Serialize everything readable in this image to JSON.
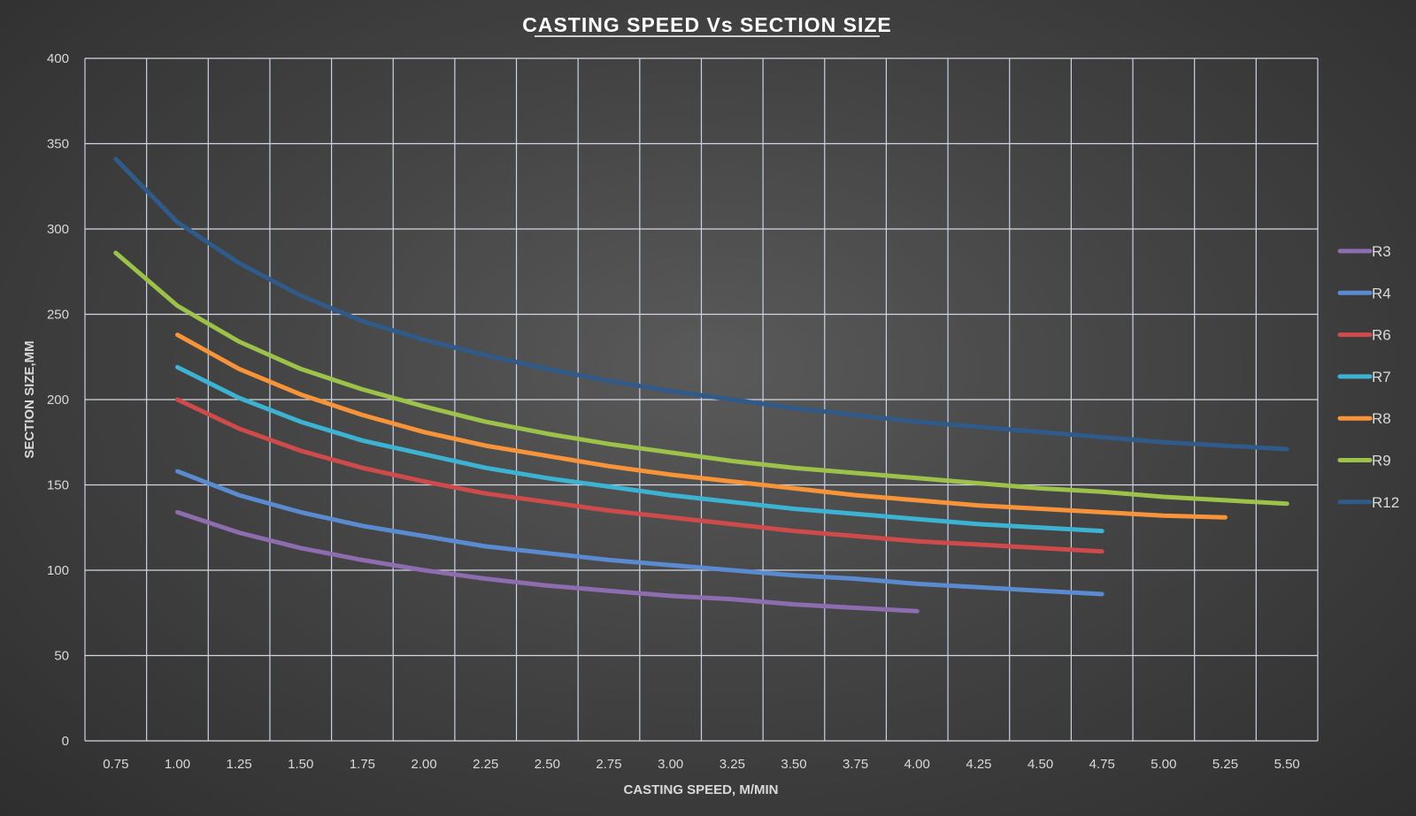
{
  "chart_data": {
    "type": "line",
    "title": "CASTING SPEED Vs SECTION SIZE",
    "xlabel": "CASTING SPEED, M/MIN",
    "ylabel": "SECTION SIZE,MM",
    "x_ticks": [
      "0.75",
      "1.00",
      "1.25",
      "1.50",
      "1.75",
      "2.00",
      "2.25",
      "2.50",
      "2.75",
      "3.00",
      "3.25",
      "3.50",
      "3.75",
      "4.00",
      "4.25",
      "4.50",
      "4.75",
      "5.00",
      "5.25",
      "5.50"
    ],
    "y_ticks": [
      0,
      50,
      100,
      150,
      200,
      250,
      300,
      350,
      400
    ],
    "ylim": [
      0,
      400
    ],
    "grid": true,
    "legend_position": "right",
    "series": [
      {
        "name": "R3",
        "color": "#8e6cb0",
        "x": [
          1.0,
          1.25,
          1.5,
          1.75,
          2.0,
          2.25,
          2.5,
          2.75,
          3.0,
          3.25,
          3.5,
          3.75,
          4.0
        ],
        "values": [
          134,
          122,
          113,
          106,
          100,
          95,
          91,
          88,
          85,
          83,
          80,
          78,
          76
        ]
      },
      {
        "name": "R4",
        "color": "#5a8ad0",
        "x": [
          1.0,
          1.25,
          1.5,
          1.75,
          2.0,
          2.25,
          2.5,
          2.75,
          3.0,
          3.25,
          3.5,
          3.75,
          4.0,
          4.25,
          4.5,
          4.75
        ],
        "values": [
          158,
          144,
          134,
          126,
          120,
          114,
          110,
          106,
          103,
          100,
          97,
          95,
          92,
          90,
          88,
          86
        ]
      },
      {
        "name": "R6",
        "color": "#cf4b4b",
        "x": [
          1.0,
          1.25,
          1.5,
          1.75,
          2.0,
          2.25,
          2.5,
          2.75,
          3.0,
          3.25,
          3.5,
          3.75,
          4.0,
          4.25,
          4.5,
          4.75
        ],
        "values": [
          200,
          183,
          170,
          160,
          152,
          145,
          140,
          135,
          131,
          127,
          123,
          120,
          117,
          115,
          113,
          111
        ]
      },
      {
        "name": "R7",
        "color": "#3db3d4",
        "x": [
          1.0,
          1.25,
          1.5,
          1.75,
          2.0,
          2.25,
          2.5,
          2.75,
          3.0,
          3.25,
          3.5,
          3.75,
          4.0,
          4.25,
          4.5,
          4.75
        ],
        "values": [
          219,
          201,
          187,
          176,
          168,
          160,
          154,
          149,
          144,
          140,
          136,
          133,
          130,
          127,
          125,
          123
        ]
      },
      {
        "name": "R8",
        "color": "#f7943a",
        "x": [
          1.0,
          1.25,
          1.5,
          1.75,
          2.0,
          2.25,
          2.5,
          2.75,
          3.0,
          3.25,
          3.5,
          3.75,
          4.0,
          4.25,
          4.5,
          4.75,
          5.0,
          5.25
        ],
        "values": [
          238,
          218,
          203,
          191,
          181,
          173,
          167,
          161,
          156,
          152,
          148,
          144,
          141,
          138,
          136,
          134,
          132,
          131
        ]
      },
      {
        "name": "R9",
        "color": "#9cc24a",
        "x": [
          0.75,
          1.0,
          1.25,
          1.5,
          1.75,
          2.0,
          2.25,
          2.5,
          2.75,
          3.0,
          3.25,
          3.5,
          3.75,
          4.0,
          4.25,
          4.5,
          4.75,
          5.0,
          5.25,
          5.5
        ],
        "values": [
          286,
          255,
          234,
          218,
          206,
          196,
          187,
          180,
          174,
          169,
          164,
          160,
          157,
          154,
          151,
          148,
          146,
          143,
          141,
          139
        ]
      },
      {
        "name": "R12",
        "color": "#2f5a8a",
        "x": [
          0.75,
          1.0,
          1.25,
          1.5,
          1.75,
          2.0,
          2.25,
          2.5,
          2.75,
          3.0,
          3.25,
          3.5,
          3.75,
          4.0,
          4.25,
          4.5,
          4.75,
          5.0,
          5.25,
          5.5
        ],
        "values": [
          341,
          304,
          280,
          261,
          246,
          235,
          226,
          218,
          211,
          205,
          200,
          195,
          191,
          187,
          184,
          181,
          178,
          175,
          173,
          171
        ]
      }
    ]
  }
}
